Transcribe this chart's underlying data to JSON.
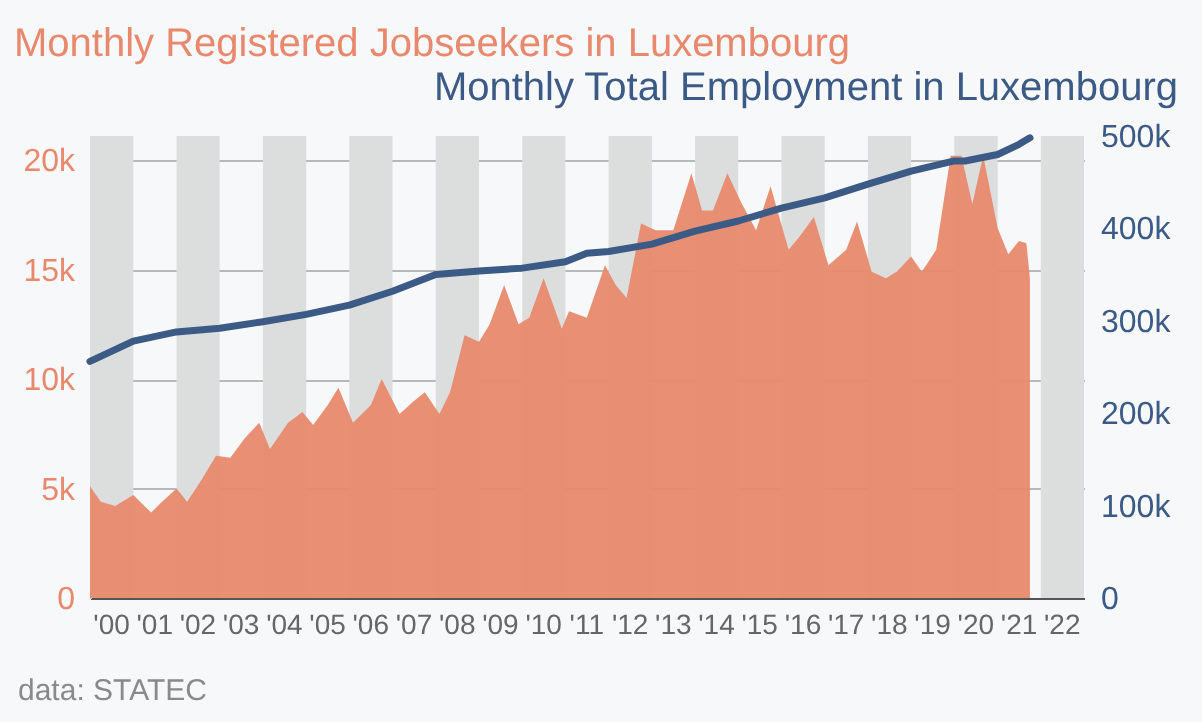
{
  "chart_data": {
    "type": "area",
    "series": [
      {
        "name": "Monthly Registered Jobseekers in Luxembourg",
        "color": "#e8896d",
        "x": [
          "2000-01",
          "2000-04",
          "2000-08",
          "2001-01",
          "2001-06",
          "2001-09",
          "2002-01",
          "2002-04",
          "2002-08",
          "2002-12",
          "2003-04",
          "2003-08",
          "2003-12",
          "2004-03",
          "2004-08",
          "2004-12",
          "2005-03",
          "2005-07",
          "2005-10",
          "2006-02",
          "2006-07",
          "2006-10",
          "2007-03",
          "2007-07",
          "2007-10",
          "2008-02",
          "2008-05",
          "2008-09",
          "2009-01",
          "2009-04",
          "2009-08",
          "2009-12",
          "2010-03",
          "2010-07",
          "2010-12",
          "2011-02",
          "2011-07",
          "2011-12",
          "2012-03",
          "2012-06",
          "2012-10",
          "2013-02",
          "2013-07",
          "2013-12",
          "2014-03",
          "2014-06",
          "2014-10",
          "2015-02",
          "2015-06",
          "2015-10",
          "2016-03",
          "2016-06",
          "2016-10",
          "2017-02",
          "2017-07",
          "2017-10",
          "2018-02",
          "2018-06",
          "2018-09",
          "2019-01",
          "2019-04",
          "2019-08",
          "2019-12",
          "2020-03",
          "2020-06",
          "2020-09",
          "2021-01",
          "2021-04",
          "2021-07",
          "2021-09",
          "2021-10"
        ],
        "values": [
          5100,
          4400,
          4200,
          4700,
          3900,
          4400,
          5000,
          4400,
          5400,
          6500,
          6400,
          7300,
          8000,
          6800,
          8000,
          8500,
          7900,
          8800,
          9600,
          8000,
          8800,
          10000,
          8400,
          9000,
          9400,
          8400,
          9400,
          12000,
          11700,
          12500,
          14300,
          12500,
          12800,
          14600,
          12300,
          13100,
          12800,
          15200,
          14300,
          13700,
          17100,
          16800,
          16800,
          19400,
          17700,
          17700,
          19400,
          18000,
          16800,
          18800,
          15900,
          16500,
          17400,
          15200,
          15900,
          17200,
          14900,
          14600,
          14900,
          15600,
          14900,
          15900,
          20200,
          20200,
          18000,
          20200,
          16900,
          15700,
          16300,
          16200,
          14600
        ]
      },
      {
        "name": "Monthly Total Employment in Luxembourg",
        "color": "#3b5a85",
        "type": "line",
        "axis": "y2",
        "x": [
          "2000-01",
          "2001-01",
          "2002-01",
          "2003-01",
          "2004-01",
          "2005-01",
          "2006-01",
          "2007-01",
          "2008-01",
          "2009-01",
          "2010-01",
          "2011-01",
          "2011-07",
          "2012-01",
          "2013-01",
          "2014-01",
          "2015-01",
          "2016-01",
          "2017-01",
          "2018-01",
          "2019-01",
          "2020-01",
          "2020-04",
          "2021-01",
          "2021-07",
          "2021-10"
        ],
        "values": [
          256000,
          278000,
          288000,
          292000,
          299000,
          307000,
          317000,
          332000,
          350000,
          354000,
          357000,
          364000,
          373000,
          375000,
          383000,
          397000,
          408000,
          422000,
          433000,
          448000,
          462000,
          473000,
          473000,
          480000,
          491000,
          498000
        ]
      }
    ],
    "xlim": [
      "2000-01",
      "2023-01"
    ],
    "xticks": [
      {
        "value": "2000-07",
        "label": "'00"
      },
      {
        "value": "2001-07",
        "label": "'01"
      },
      {
        "value": "2002-07",
        "label": "'02"
      },
      {
        "value": "2003-07",
        "label": "'03"
      },
      {
        "value": "2004-07",
        "label": "'04"
      },
      {
        "value": "2005-07",
        "label": "'05"
      },
      {
        "value": "2006-07",
        "label": "'06"
      },
      {
        "value": "2007-07",
        "label": "'07"
      },
      {
        "value": "2008-07",
        "label": "'08"
      },
      {
        "value": "2009-07",
        "label": "'09"
      },
      {
        "value": "2010-07",
        "label": "'10"
      },
      {
        "value": "2011-07",
        "label": "'11"
      },
      {
        "value": "2012-07",
        "label": "'12"
      },
      {
        "value": "2013-07",
        "label": "'13"
      },
      {
        "value": "2014-07",
        "label": "'14"
      },
      {
        "value": "2015-07",
        "label": "'15"
      },
      {
        "value": "2016-07",
        "label": "'16"
      },
      {
        "value": "2017-07",
        "label": "'17"
      },
      {
        "value": "2018-07",
        "label": "'18"
      },
      {
        "value": "2019-07",
        "label": "'19"
      },
      {
        "value": "2020-07",
        "label": "'20"
      },
      {
        "value": "2021-07",
        "label": "'21"
      },
      {
        "value": "2022-07",
        "label": "'22"
      }
    ],
    "ylim": [
      0,
      21100
    ],
    "yticks": [
      0,
      {
        "value": 5000,
        "label": "5k"
      },
      {
        "value": 10000,
        "label": "10k"
      },
      {
        "value": 15000,
        "label": "15k"
      },
      {
        "value": 20000,
        "label": "20k"
      }
    ],
    "y2lim": [
      0,
      500000
    ],
    "y2ticks": [
      0,
      {
        "value": 100000,
        "label": "100k"
      },
      {
        "value": 200000,
        "label": "200k"
      },
      {
        "value": 300000,
        "label": "300k"
      },
      {
        "value": 400000,
        "label": "400k"
      },
      {
        "value": 500000,
        "label": "500k"
      }
    ],
    "bands": [
      {
        "axis": "x",
        "from": "2000-01",
        "to": "2001-01",
        "color": "#dcdddd"
      },
      {
        "axis": "x",
        "from": "2002-01",
        "to": "2003-01",
        "color": "#dcdddd"
      },
      {
        "axis": "x",
        "from": "2004-01",
        "to": "2005-01",
        "color": "#dcdddd"
      },
      {
        "axis": "x",
        "from": "2006-01",
        "to": "2007-01",
        "color": "#dcdddd"
      },
      {
        "axis": "x",
        "from": "2008-01",
        "to": "2009-01",
        "color": "#dcdddd"
      },
      {
        "axis": "x",
        "from": "2010-01",
        "to": "2011-01",
        "color": "#dcdddd"
      },
      {
        "axis": "x",
        "from": "2012-01",
        "to": "2013-01",
        "color": "#dcdddd"
      },
      {
        "axis": "x",
        "from": "2014-01",
        "to": "2015-01",
        "color": "#dcdddd"
      },
      {
        "axis": "x",
        "from": "2016-01",
        "to": "2017-01",
        "color": "#dcdddd"
      },
      {
        "axis": "x",
        "from": "2018-01",
        "to": "2019-01",
        "color": "#dcdddd"
      },
      {
        "axis": "x",
        "from": "2020-01",
        "to": "2021-01",
        "color": "#dcdddd"
      },
      {
        "axis": "x",
        "from": "2022-01",
        "to": "2023-01",
        "color": "#dcdddd"
      }
    ],
    "grid": "y",
    "annotations": [
      "data: STATEC"
    ]
  }
}
